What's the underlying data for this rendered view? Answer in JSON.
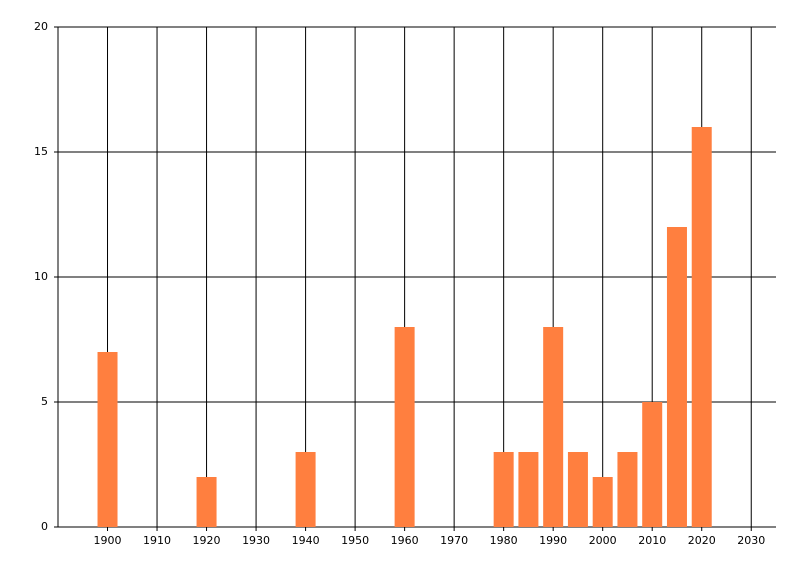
{
  "chart_data": {
    "type": "bar",
    "x": [
      1900,
      1920,
      1940,
      1960,
      1980,
      1985,
      1990,
      1995,
      2000,
      2005,
      2010,
      2015,
      2020
    ],
    "values": [
      7,
      2,
      3,
      8,
      3,
      3,
      8,
      3,
      2,
      3,
      5,
      12,
      16
    ],
    "color": "#ff7f3f",
    "xlim": [
      1890,
      2035
    ],
    "xticks": [
      1900,
      1910,
      1920,
      1930,
      1940,
      1950,
      1960,
      1970,
      1980,
      1990,
      2000,
      2010,
      2020,
      2030
    ],
    "ylim": [
      0,
      20
    ],
    "yticks": [
      0,
      5,
      10,
      15,
      20
    ],
    "grid": true
  }
}
